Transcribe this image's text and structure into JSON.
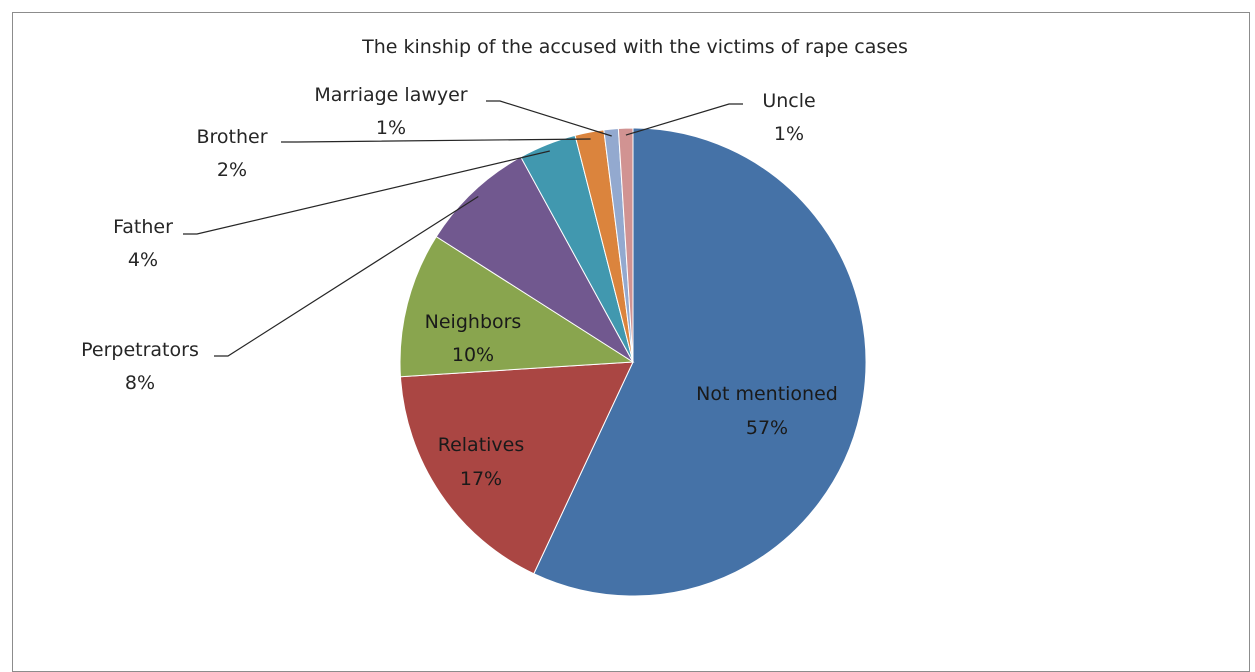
{
  "chart_data": {
    "type": "pie",
    "title": "The kinship of the accused with the victims of rape cases",
    "slices": [
      {
        "label": "Not mentioned",
        "value_text": "57%",
        "value": 57,
        "color": "#4572a7"
      },
      {
        "label": "Relatives",
        "value_text": "17%",
        "value": 17,
        "color": "#aa4643"
      },
      {
        "label": "Neighbors",
        "value_text": "10%",
        "value": 10,
        "color": "#89a54e"
      },
      {
        "label": "Perpetrators",
        "value_text": "8%",
        "value": 8,
        "color": "#71588f"
      },
      {
        "label": "Father",
        "value_text": "4%",
        "value": 4,
        "color": "#4198af"
      },
      {
        "label": "Brother",
        "value_text": "2%",
        "value": 2,
        "color": "#db843d"
      },
      {
        "label": "Marriage lawyer",
        "value_text": "1%",
        "value": 1,
        "color": "#93a9cf"
      },
      {
        "label": "Uncle",
        "value_text": "1%",
        "value": 1,
        "color": "#d19392"
      }
    ]
  }
}
